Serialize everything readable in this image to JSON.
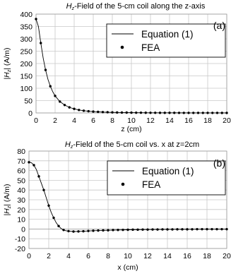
{
  "chart_data": [
    {
      "type": "line",
      "title_prefix": "H",
      "title_sub": "z",
      "title_rest": "-Field of the 5-cm coil along the z-axis",
      "panel_label": "(a)",
      "xlabel": "z (cm)",
      "ylabel_prefix": "|H",
      "ylabel_sub": "z",
      "ylabel_rest": "| (A/m)",
      "xlim": [
        0,
        20
      ],
      "ylim": [
        0,
        400
      ],
      "xticks": [
        0,
        2,
        4,
        6,
        8,
        10,
        12,
        14,
        16,
        18,
        20
      ],
      "yticks": [
        0,
        50,
        100,
        150,
        200,
        250,
        300,
        350,
        400
      ],
      "grid": true,
      "legend_position": "top-right",
      "series": [
        {
          "name": "Equation (1)",
          "style": "line",
          "x": [
            0,
            0.25,
            0.5,
            0.75,
            1,
            1.25,
            1.5,
            1.75,
            2,
            2.5,
            3,
            3.5,
            4,
            4.5,
            5,
            5.5,
            6,
            7,
            8,
            9,
            10,
            12,
            14,
            16,
            18,
            20
          ],
          "values": [
            380,
            350,
            283,
            222,
            174,
            136,
            108,
            86,
            69,
            46,
            32,
            22.5,
            16.5,
            12,
            9,
            7,
            5.5,
            3.5,
            2.3,
            1.6,
            1.2,
            0.6,
            0.4,
            0.3,
            0.2,
            0.1
          ]
        },
        {
          "name": "FEA",
          "style": "markers",
          "x": [
            0,
            0.5,
            1,
            1.5,
            2,
            2.5,
            3,
            3.5,
            4,
            4.5,
            5,
            5.5,
            6,
            6.5,
            7,
            7.5,
            8,
            8.5,
            9,
            9.5,
            10,
            10.5,
            11,
            11.5,
            12,
            12.5,
            13,
            13.5,
            14,
            14.5,
            15,
            15.5,
            16,
            16.5,
            17,
            17.5,
            18,
            18.5,
            19,
            19.5,
            20
          ],
          "values": [
            380,
            283,
            174,
            108,
            69,
            46,
            32,
            22.5,
            16.5,
            12,
            9,
            7,
            5.5,
            4.4,
            3.5,
            2.9,
            2.3,
            1.9,
            1.6,
            1.4,
            1.2,
            1,
            0.9,
            0.7,
            0.6,
            0.6,
            0.5,
            0.5,
            0.4,
            0.4,
            0.3,
            0.3,
            0.3,
            0.3,
            0.2,
            0.2,
            0.2,
            0.2,
            0.2,
            0.1,
            0.1
          ]
        }
      ]
    },
    {
      "type": "line",
      "title_prefix": "H",
      "title_sub": "z",
      "title_rest": "-Field of the 5-cm coil vs. x at z=2cm",
      "panel_label": "(b)",
      "xlabel": "x (cm)",
      "ylabel_prefix": "|H",
      "ylabel_sub": "z",
      "ylabel_rest": "| (A/m)",
      "xlim": [
        0,
        20
      ],
      "ylim": [
        -20,
        80
      ],
      "xticks": [
        0,
        2,
        4,
        6,
        8,
        10,
        12,
        14,
        16,
        18,
        20
      ],
      "yticks": [
        -20,
        -10,
        0,
        10,
        20,
        30,
        40,
        50,
        60,
        70,
        80
      ],
      "grid": true,
      "legend_position": "top-right",
      "series": [
        {
          "name": "Equation (1)",
          "style": "line",
          "x": [
            0,
            0.25,
            0.5,
            0.75,
            1,
            1.25,
            1.5,
            1.75,
            2,
            2.25,
            2.5,
            2.75,
            3,
            3.25,
            3.5,
            3.75,
            4,
            4.5,
            5,
            5.5,
            6,
            7,
            8,
            9,
            10,
            12,
            14,
            16,
            18,
            20
          ],
          "values": [
            68.5,
            68,
            65.5,
            61,
            54,
            47,
            40,
            32,
            24,
            17,
            11.5,
            6.5,
            3,
            0.5,
            -1,
            -1.8,
            -2.2,
            -2.6,
            -2.5,
            -2.3,
            -2,
            -1.6,
            -1.3,
            -1,
            -0.8,
            -0.6,
            -0.4,
            -0.3,
            -0.2,
            -0.2
          ]
        },
        {
          "name": "FEA",
          "style": "markers",
          "x": [
            0,
            0.5,
            1,
            1.5,
            2,
            2.5,
            3,
            3.5,
            4,
            4.5,
            5,
            5.5,
            6,
            6.5,
            7,
            7.5,
            8,
            8.5,
            9,
            9.5,
            10,
            10.5,
            11,
            11.5,
            12,
            12.5,
            13,
            13.5,
            14,
            14.5,
            15,
            15.5,
            16,
            16.5,
            17,
            17.5,
            18,
            18.5,
            19,
            19.5,
            20
          ],
          "values": [
            68.5,
            65.5,
            54,
            40,
            24,
            11.5,
            3,
            -1,
            -2.2,
            -2.6,
            -2.5,
            -2.3,
            -2,
            -1.8,
            -1.6,
            -1.4,
            -1.3,
            -1.1,
            -1,
            -0.9,
            -0.8,
            -0.7,
            -0.7,
            -0.6,
            -0.6,
            -0.5,
            -0.5,
            -0.4,
            -0.4,
            -0.4,
            -0.3,
            -0.3,
            -0.3,
            -0.3,
            -0.2,
            -0.2,
            -0.2,
            -0.2,
            -0.2,
            -0.2,
            -0.2
          ]
        }
      ]
    }
  ]
}
